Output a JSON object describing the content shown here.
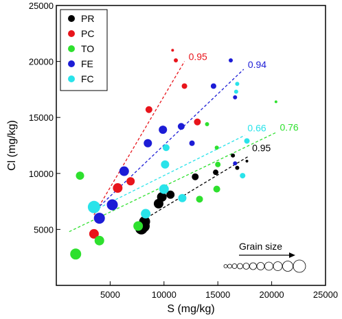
{
  "chart_data": {
    "type": "scatter",
    "xlabel": "S (mg/kg)",
    "ylabel": "Cl (mg/kg)",
    "xlim": [
      0,
      25000
    ],
    "ylim": [
      0,
      25000
    ],
    "xticks": [
      "5000",
      "10000",
      "15000",
      "20000",
      "25000"
    ],
    "yticks": [
      "5000",
      "10000",
      "15000",
      "20000",
      "25000"
    ],
    "legend_position": "top-left",
    "series": [
      {
        "name": "PR",
        "color": "#000000",
        "points": [
          {
            "x": 8100,
            "y": 5300,
            "r": 9
          },
          {
            "x": 7900,
            "y": 5100,
            "r": 9
          },
          {
            "x": 8200,
            "y": 5700,
            "r": 8
          },
          {
            "x": 9500,
            "y": 7300,
            "r": 7
          },
          {
            "x": 9800,
            "y": 7900,
            "r": 7
          },
          {
            "x": 10600,
            "y": 8100,
            "r": 6
          },
          {
            "x": 12900,
            "y": 9700,
            "r": 5
          },
          {
            "x": 14800,
            "y": 10100,
            "r": 4
          },
          {
            "x": 16400,
            "y": 11600,
            "r": 3
          },
          {
            "x": 16800,
            "y": 10500,
            "r": 3
          },
          {
            "x": 17700,
            "y": 11100,
            "r": 2
          }
        ],
        "fit": {
          "label": "0.95",
          "from": [
            8000,
            5800
          ],
          "to": [
            17800,
            11500
          ]
        }
      },
      {
        "name": "PC",
        "color": "#e8141b",
        "points": [
          {
            "x": 3500,
            "y": 4600,
            "r": 7
          },
          {
            "x": 5700,
            "y": 8700,
            "r": 7
          },
          {
            "x": 6900,
            "y": 9300,
            "r": 6
          },
          {
            "x": 8600,
            "y": 15700,
            "r": 5
          },
          {
            "x": 11900,
            "y": 17800,
            "r": 4
          },
          {
            "x": 13100,
            "y": 14600,
            "r": 5
          },
          {
            "x": 11100,
            "y": 20100,
            "r": 3
          },
          {
            "x": 10800,
            "y": 21000,
            "r": 2
          }
        ],
        "fit": {
          "label": "0.95",
          "from": [
            3500,
            6300
          ],
          "to": [
            11900,
            20000
          ]
        }
      },
      {
        "name": "TO",
        "color": "#2ee02e",
        "points": [
          {
            "x": 1800,
            "y": 2800,
            "r": 8
          },
          {
            "x": 2200,
            "y": 9800,
            "r": 6
          },
          {
            "x": 4000,
            "y": 4000,
            "r": 7
          },
          {
            "x": 7600,
            "y": 5300,
            "r": 7
          },
          {
            "x": 13300,
            "y": 7700,
            "r": 5
          },
          {
            "x": 14900,
            "y": 8600,
            "r": 5
          },
          {
            "x": 14900,
            "y": 12300,
            "r": 3
          },
          {
            "x": 15000,
            "y": 10800,
            "r": 4
          },
          {
            "x": 14000,
            "y": 14400,
            "r": 3
          },
          {
            "x": 20400,
            "y": 16400,
            "r": 2
          }
        ],
        "fit": {
          "label": "0.76",
          "from": [
            1200,
            4800
          ],
          "to": [
            20500,
            13700
          ]
        }
      },
      {
        "name": "FE",
        "color": "#1c1cd6",
        "points": [
          {
            "x": 4000,
            "y": 6000,
            "r": 8
          },
          {
            "x": 5200,
            "y": 7200,
            "r": 8
          },
          {
            "x": 6300,
            "y": 10200,
            "r": 7
          },
          {
            "x": 8500,
            "y": 12700,
            "r": 6
          },
          {
            "x": 9900,
            "y": 13900,
            "r": 6
          },
          {
            "x": 11600,
            "y": 14200,
            "r": 5
          },
          {
            "x": 12600,
            "y": 12700,
            "r": 4
          },
          {
            "x": 14600,
            "y": 17800,
            "r": 4
          },
          {
            "x": 16200,
            "y": 20100,
            "r": 3
          },
          {
            "x": 16600,
            "y": 16800,
            "r": 3
          },
          {
            "x": 16600,
            "y": 10900,
            "r": 3
          }
        ],
        "fit": {
          "label": "0.94",
          "from": [
            3400,
            6500
          ],
          "to": [
            17400,
            19300
          ]
        }
      },
      {
        "name": "FC",
        "color": "#29e3ea",
        "points": [
          {
            "x": 3500,
            "y": 7000,
            "r": 9
          },
          {
            "x": 8300,
            "y": 6400,
            "r": 7
          },
          {
            "x": 10000,
            "y": 8600,
            "r": 7
          },
          {
            "x": 11700,
            "y": 7800,
            "r": 6
          },
          {
            "x": 10100,
            "y": 10800,
            "r": 6
          },
          {
            "x": 10200,
            "y": 12300,
            "r": 5
          },
          {
            "x": 17300,
            "y": 9800,
            "r": 4
          },
          {
            "x": 17700,
            "y": 12900,
            "r": 4
          },
          {
            "x": 16700,
            "y": 17300,
            "r": 3
          },
          {
            "x": 16800,
            "y": 18000,
            "r": 3
          }
        ],
        "fit": {
          "label": "0.66",
          "from": [
            3500,
            6700
          ],
          "to": [
            17500,
            13400
          ]
        }
      }
    ],
    "annotation": {
      "text": "Grain size"
    }
  }
}
